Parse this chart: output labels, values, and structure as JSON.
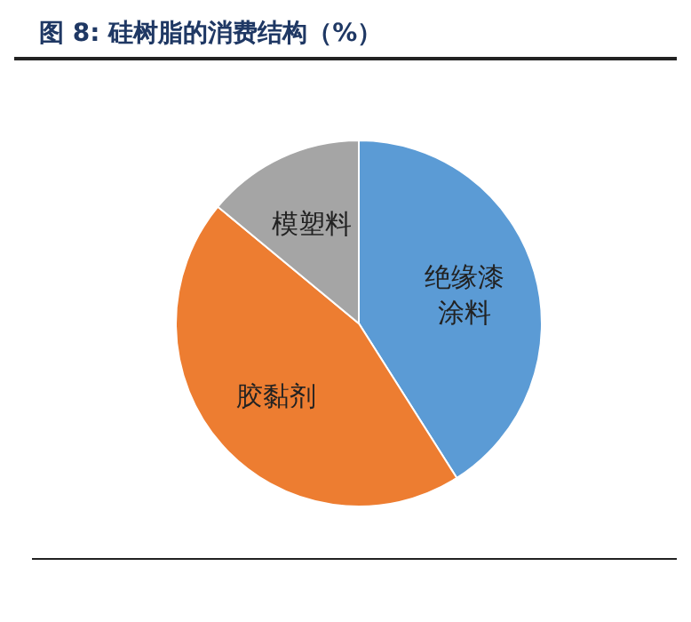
{
  "chart_data": {
    "type": "pie",
    "title": "图 8:  硅树脂的消费结构（%）",
    "categories": [
      "绝缘漆涂料",
      "胶黏剂",
      "模塑料"
    ],
    "values": [
      41,
      45,
      14
    ],
    "colors": [
      "#5b9bd5",
      "#ed7d31",
      "#a5a5a5"
    ],
    "legend": false
  }
}
